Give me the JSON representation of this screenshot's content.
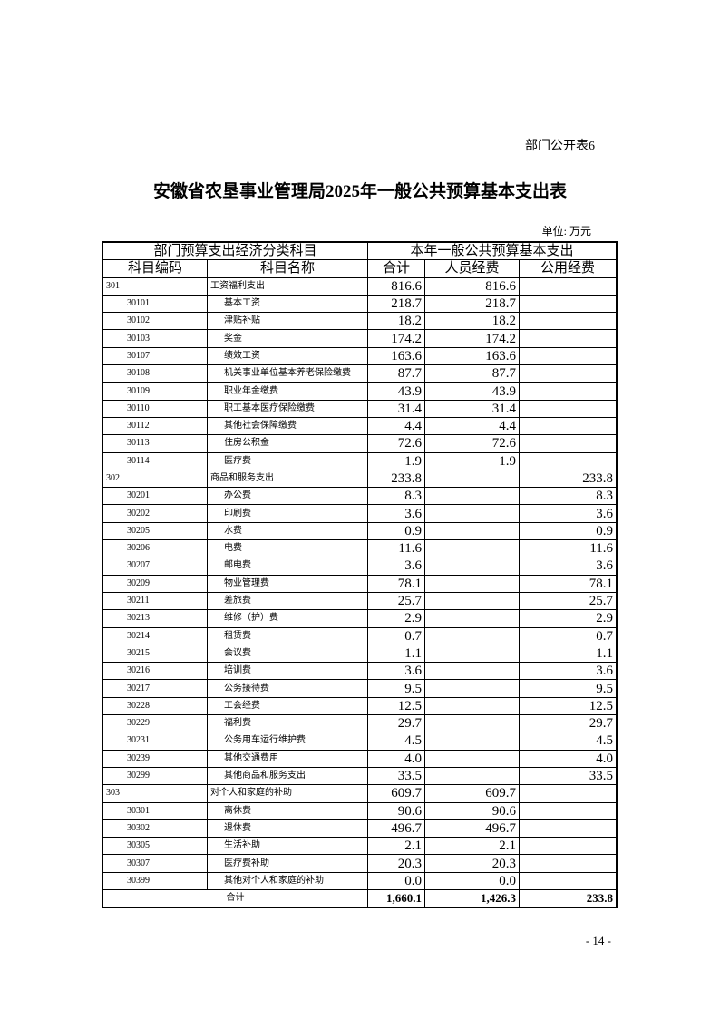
{
  "doc_tag": "部门公开表6",
  "title": "安徽省农垦事业管理局2025年一般公共预算基本支出表",
  "unit": "单位: 万元",
  "header": {
    "group_left": "部门预算支出经济分类科目",
    "group_right": "本年一般公共预算基本支出",
    "code": "科目编码",
    "name": "科目名称",
    "total": "合计",
    "personnel": "人员经费",
    "public": "公用经费"
  },
  "rows": [
    {
      "code": "301",
      "name": "工资福利支出",
      "total": "816.6",
      "personnel": "816.6",
      "public": "",
      "level": 1
    },
    {
      "code": "30101",
      "name": "基本工资",
      "total": "218.7",
      "personnel": "218.7",
      "public": "",
      "level": 2
    },
    {
      "code": "30102",
      "name": "津贴补贴",
      "total": "18.2",
      "personnel": "18.2",
      "public": "",
      "level": 2
    },
    {
      "code": "30103",
      "name": "奖金",
      "total": "174.2",
      "personnel": "174.2",
      "public": "",
      "level": 2
    },
    {
      "code": "30107",
      "name": "绩效工资",
      "total": "163.6",
      "personnel": "163.6",
      "public": "",
      "level": 2
    },
    {
      "code": "30108",
      "name": "机关事业单位基本养老保险缴费",
      "total": "87.7",
      "personnel": "87.7",
      "public": "",
      "level": 2
    },
    {
      "code": "30109",
      "name": "职业年金缴费",
      "total": "43.9",
      "personnel": "43.9",
      "public": "",
      "level": 2
    },
    {
      "code": "30110",
      "name": "职工基本医疗保险缴费",
      "total": "31.4",
      "personnel": "31.4",
      "public": "",
      "level": 2
    },
    {
      "code": "30112",
      "name": "其他社会保障缴费",
      "total": "4.4",
      "personnel": "4.4",
      "public": "",
      "level": 2
    },
    {
      "code": "30113",
      "name": "住房公积金",
      "total": "72.6",
      "personnel": "72.6",
      "public": "",
      "level": 2
    },
    {
      "code": "30114",
      "name": "医疗费",
      "total": "1.9",
      "personnel": "1.9",
      "public": "",
      "level": 2
    },
    {
      "code": "302",
      "name": "商品和服务支出",
      "total": "233.8",
      "personnel": "",
      "public": "233.8",
      "level": 1
    },
    {
      "code": "30201",
      "name": "办公费",
      "total": "8.3",
      "personnel": "",
      "public": "8.3",
      "level": 2
    },
    {
      "code": "30202",
      "name": "印刷费",
      "total": "3.6",
      "personnel": "",
      "public": "3.6",
      "level": 2
    },
    {
      "code": "30205",
      "name": "水费",
      "total": "0.9",
      "personnel": "",
      "public": "0.9",
      "level": 2
    },
    {
      "code": "30206",
      "name": "电费",
      "total": "11.6",
      "personnel": "",
      "public": "11.6",
      "level": 2
    },
    {
      "code": "30207",
      "name": "邮电费",
      "total": "3.6",
      "personnel": "",
      "public": "3.6",
      "level": 2
    },
    {
      "code": "30209",
      "name": "物业管理费",
      "total": "78.1",
      "personnel": "",
      "public": "78.1",
      "level": 2
    },
    {
      "code": "30211",
      "name": "差旅费",
      "total": "25.7",
      "personnel": "",
      "public": "25.7",
      "level": 2
    },
    {
      "code": "30213",
      "name": "维修（护）费",
      "total": "2.9",
      "personnel": "",
      "public": "2.9",
      "level": 2
    },
    {
      "code": "30214",
      "name": "租赁费",
      "total": "0.7",
      "personnel": "",
      "public": "0.7",
      "level": 2
    },
    {
      "code": "30215",
      "name": "会议费",
      "total": "1.1",
      "personnel": "",
      "public": "1.1",
      "level": 2
    },
    {
      "code": "30216",
      "name": "培训费",
      "total": "3.6",
      "personnel": "",
      "public": "3.6",
      "level": 2
    },
    {
      "code": "30217",
      "name": "公务接待费",
      "total": "9.5",
      "personnel": "",
      "public": "9.5",
      "level": 2
    },
    {
      "code": "30228",
      "name": "工会经费",
      "total": "12.5",
      "personnel": "",
      "public": "12.5",
      "level": 2
    },
    {
      "code": "30229",
      "name": "福利费",
      "total": "29.7",
      "personnel": "",
      "public": "29.7",
      "level": 2
    },
    {
      "code": "30231",
      "name": "公务用车运行维护费",
      "total": "4.5",
      "personnel": "",
      "public": "4.5",
      "level": 2
    },
    {
      "code": "30239",
      "name": "其他交通费用",
      "total": "4.0",
      "personnel": "",
      "public": "4.0",
      "level": 2
    },
    {
      "code": "30299",
      "name": "其他商品和服务支出",
      "total": "33.5",
      "personnel": "",
      "public": "33.5",
      "level": 2
    },
    {
      "code": "303",
      "name": "对个人和家庭的补助",
      "total": "609.7",
      "personnel": "609.7",
      "public": "",
      "level": 1
    },
    {
      "code": "30301",
      "name": "离休费",
      "total": "90.6",
      "personnel": "90.6",
      "public": "",
      "level": 2
    },
    {
      "code": "30302",
      "name": "退休费",
      "total": "496.7",
      "personnel": "496.7",
      "public": "",
      "level": 2
    },
    {
      "code": "30305",
      "name": "生活补助",
      "total": "2.1",
      "personnel": "2.1",
      "public": "",
      "level": 2
    },
    {
      "code": "30307",
      "name": "医疗费补助",
      "total": "20.3",
      "personnel": "20.3",
      "public": "",
      "level": 2
    },
    {
      "code": "30399",
      "name": "其他对个人和家庭的补助",
      "total": "0.0",
      "personnel": "0.0",
      "public": "",
      "level": 2
    }
  ],
  "total_row": {
    "label": "合计",
    "total": "1,660.1",
    "personnel": "1,426.3",
    "public": "233.8"
  },
  "page_number": "- 14 -"
}
